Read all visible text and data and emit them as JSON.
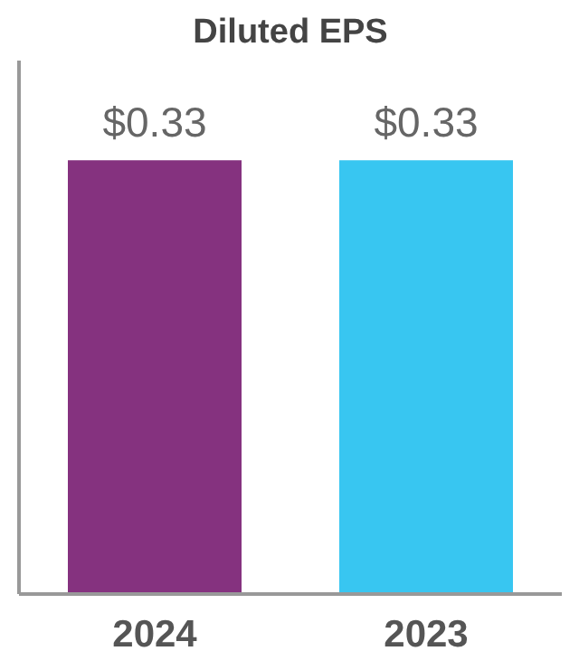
{
  "chart_data": {
    "type": "bar",
    "title": "Diluted EPS",
    "categories": [
      "2024",
      "2023"
    ],
    "values": [
      0.33,
      0.33
    ],
    "colors": [
      "#85327f",
      "#38c6f1"
    ],
    "value_labels": [
      "$0.33",
      "$0.33"
    ],
    "tick_labels": "x",
    "grid": false
  }
}
